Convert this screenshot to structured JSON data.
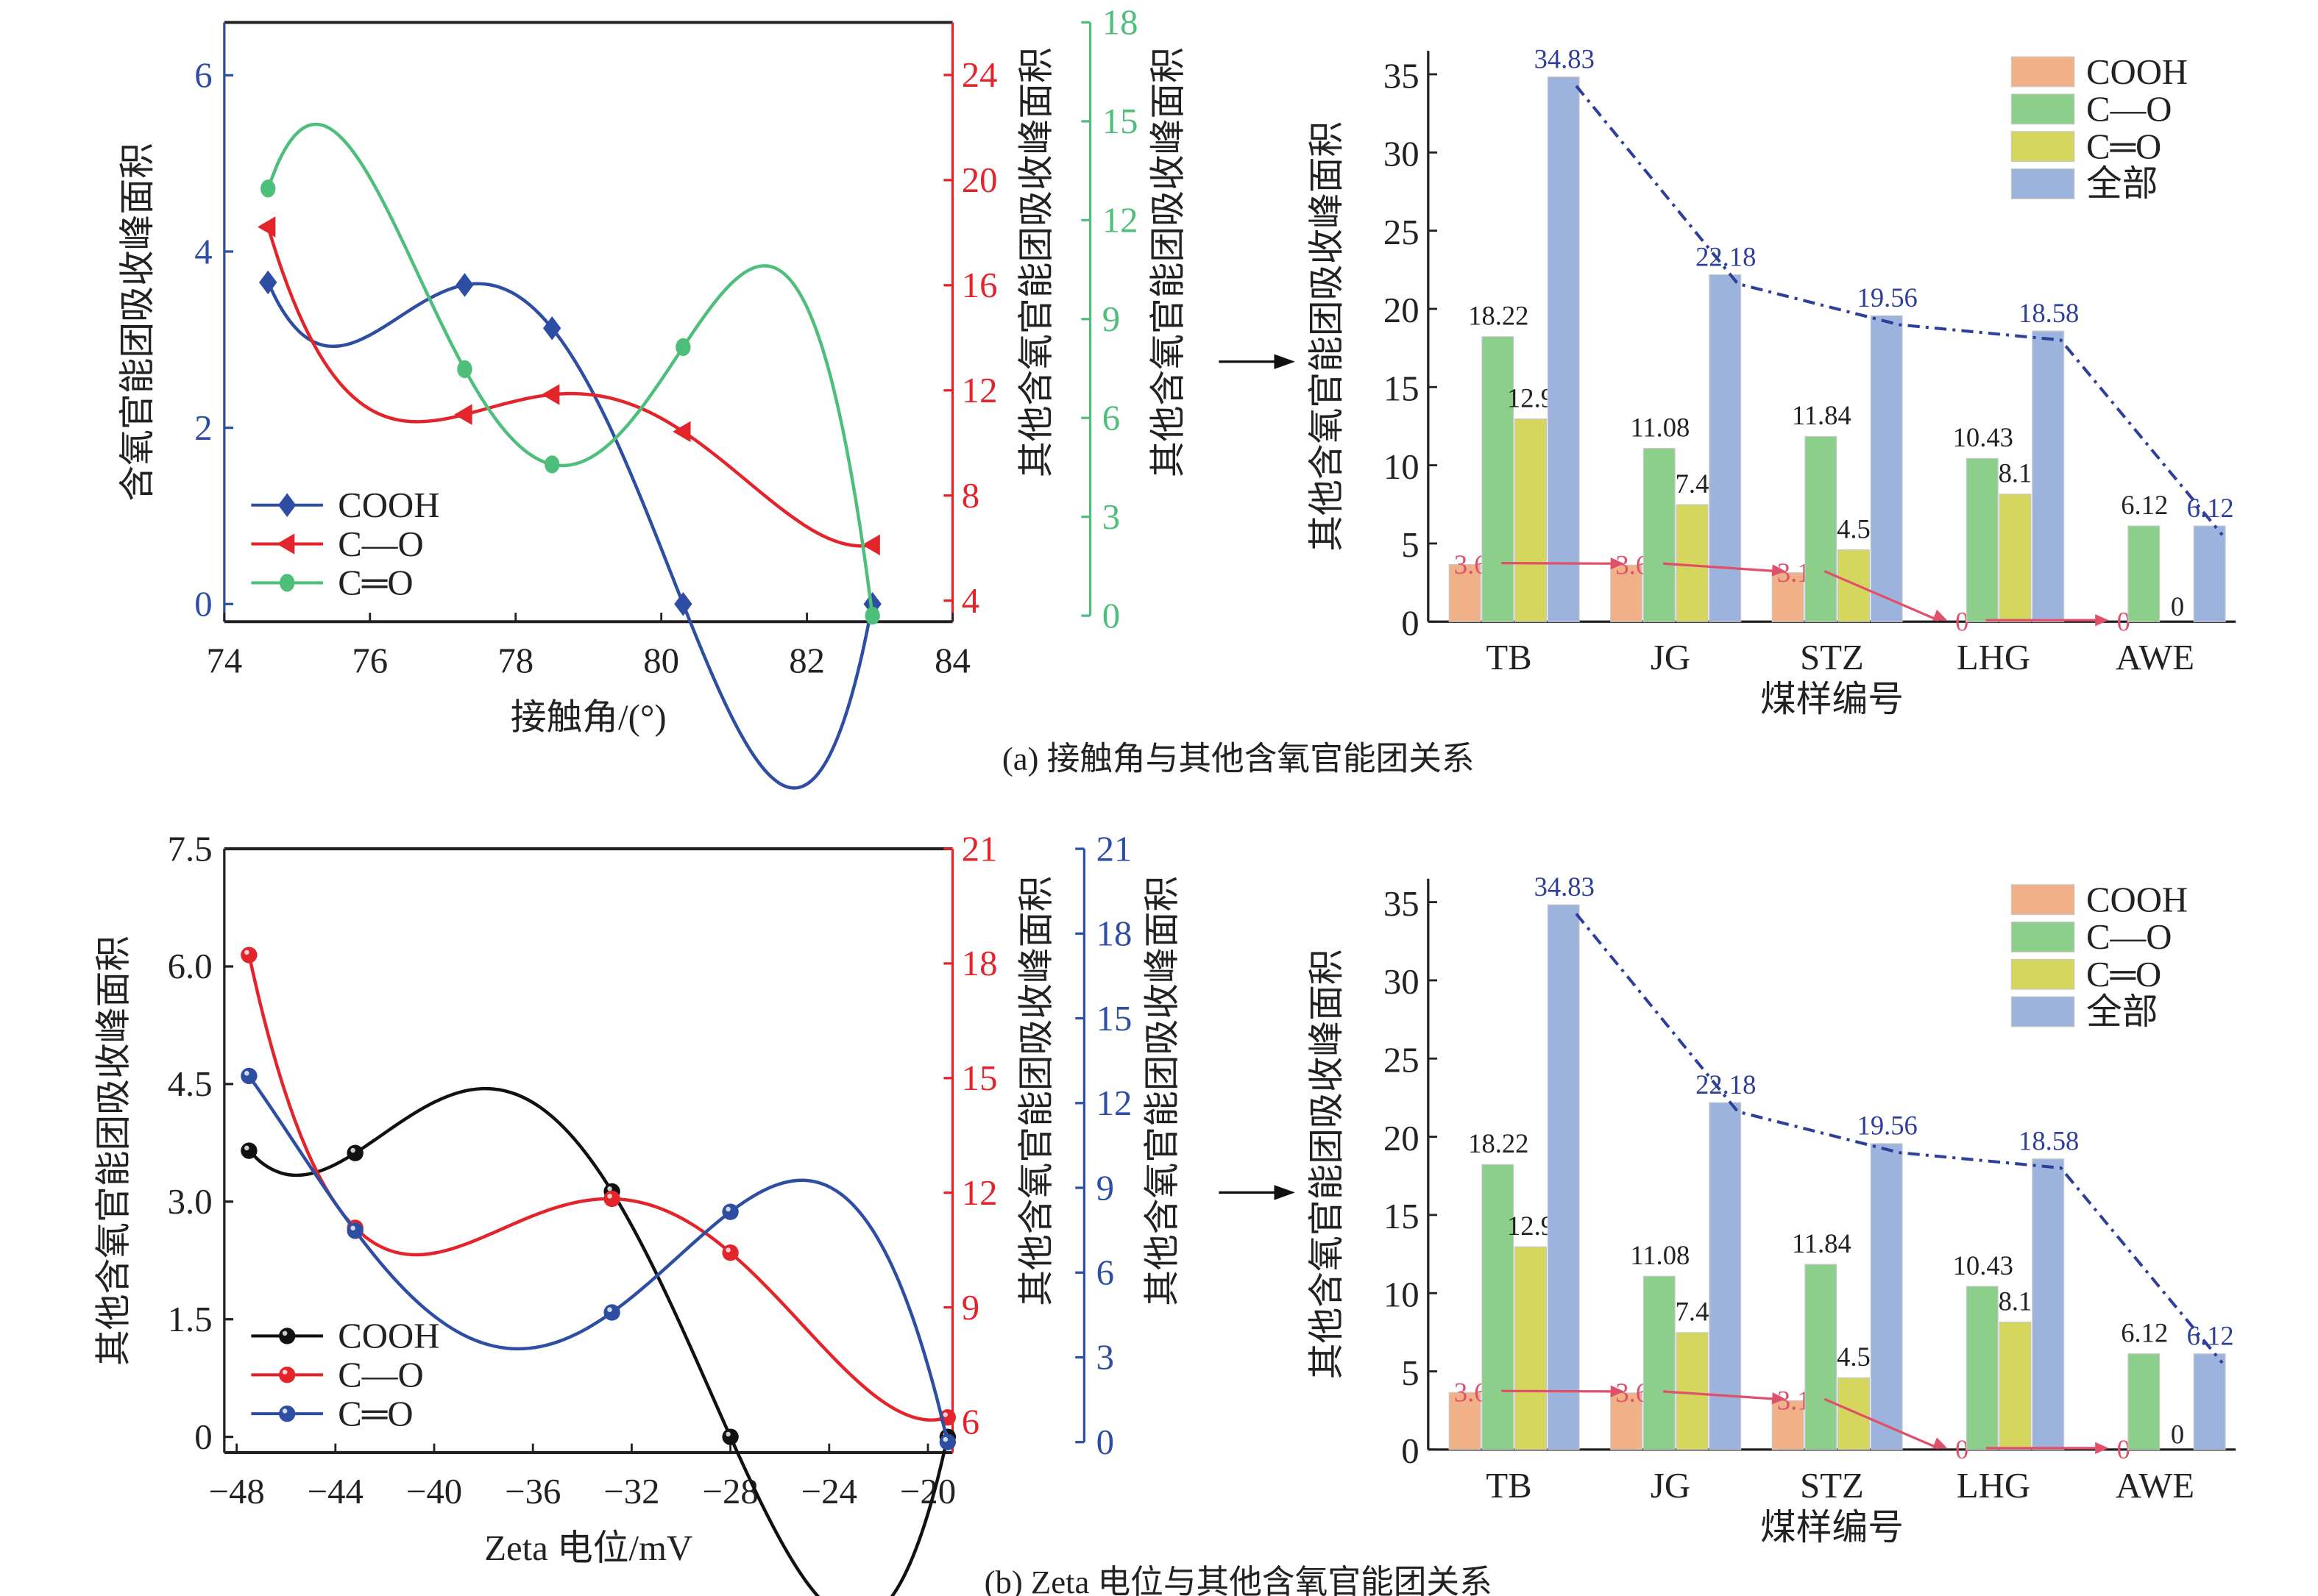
{
  "colors": {
    "cooh_line": "#2e4ea3",
    "co_line": "#e3242b",
    "cdo_line_a": "#4dbf7a",
    "cdo_line_b": "#2e4ea3",
    "cooh_line_b": "#111111",
    "bar_cooh": "#f0b088",
    "bar_co": "#8ccf8a",
    "bar_cdo": "#d4d65e",
    "bar_total": "#9bb3dd",
    "total_label": "#2e3f9a",
    "cooh_label": "#e0506a",
    "axis_black": "#222222"
  },
  "captions": {
    "a": "(a) 接触角与其他含氧官能团关系",
    "b": "(b) Zeta 电位与其他含氧官能团关系"
  },
  "chart_data": [
    {
      "id": "a-line",
      "type": "line",
      "title": "",
      "xlabel": "接触角/(°)",
      "xlim": [
        74,
        84
      ],
      "xticks": [
        74,
        76,
        78,
        80,
        82,
        84
      ],
      "axes": [
        {
          "id": "left",
          "label": "含氧官能团吸收峰面积",
          "ylim": [
            -0.2,
            6.6
          ],
          "ticks": [
            0,
            2,
            4,
            6
          ],
          "color": "#2e4ea3",
          "series": "COOH"
        },
        {
          "id": "right1",
          "label": "其他含氧官能团吸收峰面积",
          "ylim": [
            3.2,
            26
          ],
          "ticks": [
            4,
            8,
            12,
            16,
            20,
            24
          ],
          "color": "#e3242b",
          "series": "C—O"
        },
        {
          "id": "right2",
          "label": "其他含氧官能团吸收峰面积",
          "ylim": [
            0,
            18
          ],
          "ticks": [
            0,
            3,
            6,
            9,
            12,
            15,
            18
          ],
          "color": "#4dbf7a",
          "series": "C═O"
        }
      ],
      "legend": {
        "placement": "bottom-left",
        "entries": [
          "COOH",
          "C—O",
          "C═O"
        ]
      },
      "series": [
        {
          "name": "COOH",
          "axis": "left",
          "marker": "diamond",
          "x": [
            74.6,
            77.3,
            78.5,
            80.3,
            82.9
          ],
          "y": [
            3.65,
            3.62,
            3.13,
            0,
            0
          ]
        },
        {
          "name": "C—O",
          "axis": "right1",
          "marker": "triangle-left",
          "x": [
            74.6,
            77.3,
            78.5,
            80.3,
            82.9
          ],
          "y": [
            18.22,
            11.08,
            11.84,
            10.43,
            6.12
          ]
        },
        {
          "name": "C═O",
          "axis": "right2",
          "marker": "circle",
          "x": [
            74.6,
            77.3,
            78.5,
            80.3,
            82.9
          ],
          "y": [
            12.96,
            7.48,
            4.59,
            8.15,
            0
          ]
        }
      ]
    },
    {
      "id": "a-bar",
      "type": "bar",
      "title": "",
      "xlabel": "煤样编号",
      "ylabel": "其他含氧官能团吸收峰面积",
      "ylim": [
        0,
        36.5
      ],
      "yticks": [
        0,
        5,
        10,
        15,
        20,
        25,
        30,
        35
      ],
      "categories": [
        "TB",
        "JG",
        "STZ",
        "LHG",
        "AWE"
      ],
      "legend": {
        "placement": "top-right",
        "entries": [
          "COOH",
          "C—O",
          "C═O",
          "全部"
        ]
      },
      "series": [
        {
          "name": "COOH",
          "values": [
            3.65,
            3.62,
            3.13,
            0,
            0
          ],
          "labels": [
            "3.65",
            "3.62",
            "3.13",
            "0",
            "0"
          ]
        },
        {
          "name": "C—O",
          "values": [
            18.22,
            11.08,
            11.84,
            10.43,
            6.12
          ],
          "labels": [
            "18.22",
            "11.08",
            "11.84",
            "10.43",
            "6.12"
          ]
        },
        {
          "name": "C═O",
          "values": [
            12.96,
            7.48,
            4.59,
            8.15,
            0
          ],
          "labels": [
            "12.96",
            "7.48",
            "4.59",
            "8.15",
            "0"
          ]
        },
        {
          "name": "全部",
          "values": [
            34.83,
            22.18,
            19.56,
            18.58,
            6.12
          ],
          "labels": [
            "34.83",
            "22.18",
            "19.56",
            "18.58",
            "6.12"
          ]
        }
      ]
    },
    {
      "id": "b-line",
      "type": "line",
      "title": "",
      "xlabel": "Zeta 电位/mV",
      "xlim": [
        -48.5,
        -19
      ],
      "xticks": [
        -48,
        -44,
        -40,
        -36,
        -32,
        -28,
        -24,
        -20
      ],
      "axes": [
        {
          "id": "left",
          "label": "其他含氧官能团吸收峰面积",
          "ylim": [
            -0.2,
            7.5
          ],
          "ticks": [
            "0",
            "1.5",
            "3.0",
            "4.5",
            "6.0",
            "7.5"
          ],
          "color": "#222222",
          "series": "COOH"
        },
        {
          "id": "right1",
          "label": "其他含氧官能团吸收峰面积",
          "ylim": [
            5.2,
            21
          ],
          "ticks": [
            6,
            9,
            12,
            15,
            18,
            21
          ],
          "color": "#e3242b",
          "series": "C—O"
        },
        {
          "id": "right2",
          "label": "其他含氧官能团吸收峰面积",
          "ylim": [
            0,
            21
          ],
          "ticks": [
            0,
            3,
            6,
            9,
            12,
            15,
            18,
            21
          ],
          "color": "#2e4ea3",
          "series": "C═O"
        }
      ],
      "legend": {
        "placement": "bottom-left",
        "entries": [
          "COOH",
          "C—O",
          "C═O"
        ]
      },
      "series": [
        {
          "name": "COOH",
          "axis": "left",
          "marker": "sphere",
          "x": [
            -47.5,
            -43.2,
            -32.8,
            -28.0,
            -19.2
          ],
          "y": [
            3.65,
            3.62,
            3.13,
            0,
            0
          ]
        },
        {
          "name": "C—O",
          "axis": "right1",
          "marker": "sphere",
          "x": [
            -47.5,
            -43.2,
            -32.8,
            -28.0,
            -19.2
          ],
          "y": [
            18.22,
            11.08,
            11.84,
            10.43,
            6.12
          ]
        },
        {
          "name": "C═O",
          "axis": "right2",
          "marker": "sphere",
          "x": [
            -47.5,
            -43.2,
            -32.8,
            -28.0,
            -19.2
          ],
          "y": [
            12.96,
            7.48,
            4.59,
            8.15,
            0
          ]
        }
      ]
    },
    {
      "id": "b-bar",
      "type": "bar",
      "title": "",
      "xlabel": "煤样编号",
      "ylabel": "其他含氧官能团吸收峰面积",
      "ylim": [
        0,
        36.5
      ],
      "yticks": [
        0,
        5,
        10,
        15,
        20,
        25,
        30,
        35
      ],
      "categories": [
        "TB",
        "JG",
        "STZ",
        "LHG",
        "AWE"
      ],
      "legend": {
        "placement": "top-right",
        "entries": [
          "COOH",
          "C—O",
          "C═O",
          "全部"
        ]
      },
      "series": [
        {
          "name": "COOH",
          "values": [
            3.65,
            3.62,
            3.13,
            0,
            0
          ],
          "labels": [
            "3.65",
            "3.62",
            "3.13",
            "0",
            "0"
          ]
        },
        {
          "name": "C—O",
          "values": [
            18.22,
            11.08,
            11.84,
            10.43,
            6.12
          ],
          "labels": [
            "18.22",
            "11.08",
            "11.84",
            "10.43",
            "6.12"
          ]
        },
        {
          "name": "C═O",
          "values": [
            12.96,
            7.48,
            4.59,
            8.15,
            0
          ],
          "labels": [
            "12.96",
            "7.48",
            "4.59",
            "8.15",
            "0"
          ]
        },
        {
          "name": "全部",
          "values": [
            34.83,
            22.18,
            19.56,
            18.58,
            6.12
          ],
          "labels": [
            "34.83",
            "22.18",
            "19.56",
            "18.58",
            "6.12"
          ]
        }
      ]
    }
  ]
}
